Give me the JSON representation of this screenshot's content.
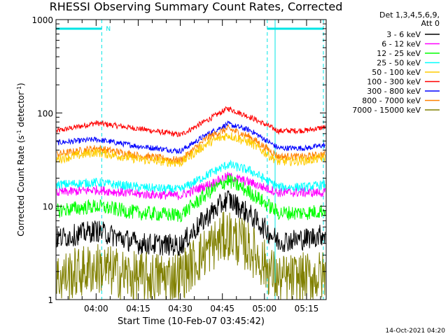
{
  "chart_data": {
    "type": "line",
    "title": "RHESSI Observing Summary Count Rates, Corrected",
    "xlabel": "Start Time (10-Feb-07 03:45:42)",
    "ylabel": "Corrected Count Rate (s-1 detector-1)",
    "ylabel_parts": [
      "Corrected Count Rate (s",
      "-1",
      " detector",
      "-1",
      ")"
    ],
    "yscale": "log",
    "xlim": [
      "03:45:42",
      "05:22:00"
    ],
    "ylim": [
      1,
      1000
    ],
    "x_ticks": [
      "04:00",
      "04:15",
      "04:30",
      "04:45",
      "05:00",
      "05:15"
    ],
    "y_ticks": [
      "1",
      "10",
      "100",
      "1000"
    ],
    "legend": {
      "placement": "right",
      "header": [
        "Det 1,3,4,5,6,9,",
        "Att 0"
      ],
      "entries": [
        {
          "label": "3 - 6 keV",
          "color": "#000000"
        },
        {
          "label": "6 - 12 keV",
          "color": "#ff00ff"
        },
        {
          "label": "12 - 25 keV",
          "color": "#00ff00"
        },
        {
          "label": "25 - 50 keV",
          "color": "#00ffff"
        },
        {
          "label": "50 - 100 keV",
          "color": "#ffcc00"
        },
        {
          "label": "100 - 300 keV",
          "color": "#ff0000"
        },
        {
          "label": "300 - 800 keV",
          "color": "#0000ff"
        },
        {
          "label": "800 - 7000 keV",
          "color": "#ff8000"
        },
        {
          "label": "7000 - 15000 keV",
          "color": "#808000"
        }
      ]
    },
    "annotations": {
      "night_bar_label": "N",
      "night_intervals": [
        [
          "03:45:42",
          "04:02:00"
        ],
        [
          "05:01:00",
          "05:21:00"
        ]
      ]
    },
    "series": [
      {
        "name": "100 - 300 keV",
        "color": "#ff0000",
        "noise": 0.03,
        "x": [
          "03:46",
          "04:00",
          "04:15",
          "04:30",
          "04:40",
          "04:47",
          "04:55",
          "05:05",
          "05:15",
          "05:21"
        ],
        "values": [
          64,
          78,
          68,
          58,
          85,
          112,
          90,
          64,
          65,
          70
        ]
      },
      {
        "name": "300 - 800 keV",
        "color": "#0000ff",
        "noise": 0.03,
        "x": [
          "03:46",
          "04:00",
          "04:15",
          "04:30",
          "04:40",
          "04:47",
          "04:55",
          "05:05",
          "05:15",
          "05:21"
        ],
        "values": [
          48,
          52,
          44,
          39,
          60,
          76,
          65,
          42,
          42,
          45
        ]
      },
      {
        "name": "800 - 7000 keV",
        "color": "#ff8000",
        "noise": 0.04,
        "x": [
          "03:46",
          "04:00",
          "04:15",
          "04:30",
          "04:40",
          "04:47",
          "04:55",
          "05:05",
          "05:15",
          "05:21"
        ],
        "values": [
          36,
          42,
          35,
          31,
          55,
          68,
          55,
          34,
          34,
          36
        ]
      },
      {
        "name": "50 - 100 keV",
        "color": "#ffcc00",
        "noise": 0.05,
        "x": [
          "03:46",
          "04:00",
          "04:15",
          "04:30",
          "04:40",
          "04:47",
          "04:55",
          "05:05",
          "05:15",
          "05:21"
        ],
        "values": [
          32,
          38,
          32,
          29,
          48,
          58,
          48,
          30,
          31,
          33
        ]
      },
      {
        "name": "25 - 50 keV",
        "color": "#00ffff",
        "noise": 0.05,
        "x": [
          "03:46",
          "04:00",
          "04:15",
          "04:30",
          "04:40",
          "04:47",
          "04:55",
          "05:05",
          "05:15",
          "05:21"
        ],
        "values": [
          17,
          18,
          16,
          15,
          22,
          28,
          24,
          16,
          16,
          17
        ]
      },
      {
        "name": "6 - 12 keV",
        "color": "#ff00ff",
        "noise": 0.05,
        "x": [
          "03:46",
          "04:00",
          "04:15",
          "04:30",
          "04:40",
          "04:47",
          "04:55",
          "05:05",
          "05:15",
          "05:21"
        ],
        "values": [
          14,
          15,
          13.5,
          13,
          17,
          21,
          18,
          14,
          14,
          14
        ]
      },
      {
        "name": "12 - 25 keV",
        "color": "#00ff00",
        "noise": 0.08,
        "x": [
          "03:46",
          "04:00",
          "04:15",
          "04:30",
          "04:40",
          "04:47",
          "04:55",
          "05:05",
          "05:15",
          "05:21"
        ],
        "values": [
          9,
          10,
          8.5,
          8,
          14,
          19,
          14,
          8.5,
          8.5,
          9
        ]
      },
      {
        "name": "3 - 6 keV",
        "color": "#000000",
        "noise": 0.12,
        "x": [
          "03:46",
          "04:00",
          "04:15",
          "04:30",
          "04:40",
          "04:47",
          "04:55",
          "05:05",
          "05:15",
          "05:21"
        ],
        "values": [
          4.5,
          5.5,
          4,
          3.8,
          8,
          12,
          8,
          4.2,
          4.5,
          5
        ]
      },
      {
        "name": "7000 - 15000 keV",
        "color": "#808000",
        "noise": 0.28,
        "x": [
          "03:46",
          "04:00",
          "04:15",
          "04:30",
          "04:40",
          "04:47",
          "04:55",
          "05:05",
          "05:15",
          "05:21"
        ],
        "values": [
          1.7,
          2.2,
          1.7,
          1.8,
          3.5,
          5,
          3.5,
          1.6,
          1.7,
          1.8
        ]
      }
    ]
  },
  "footer": {
    "timestamp": "14-Oct-2021 04:20"
  }
}
